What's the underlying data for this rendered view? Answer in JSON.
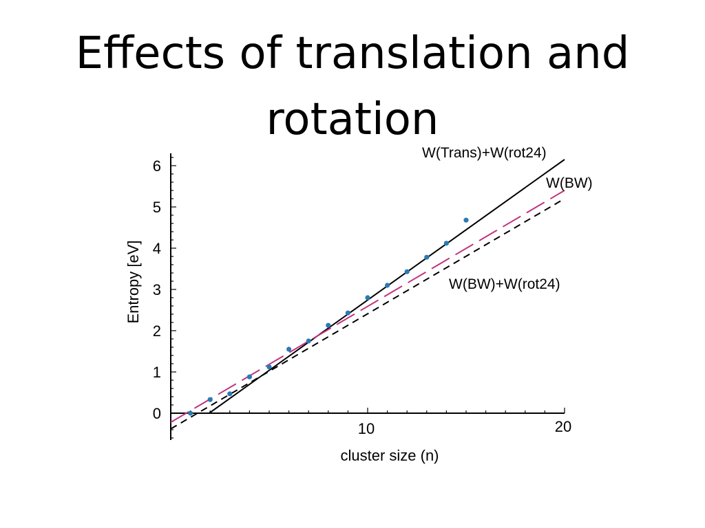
{
  "slide": {
    "title_line1": "Effects of translation and",
    "title_line2": "rotation"
  },
  "chart_data": {
    "type": "scatter",
    "xlabel": "cluster size (n)",
    "ylabel": "Entropy [eV]",
    "xlim": [
      0,
      20
    ],
    "ylim": [
      -0.6,
      6.3
    ],
    "x_tick_labels": [
      {
        "value": 10,
        "label": "10"
      },
      {
        "value": 20,
        "label": "20"
      }
    ],
    "y_tick_labels": [
      {
        "value": 0,
        "label": "0"
      },
      {
        "value": 1,
        "label": "1"
      },
      {
        "value": 2,
        "label": "2"
      },
      {
        "value": 3,
        "label": "3"
      },
      {
        "value": 4,
        "label": "4"
      },
      {
        "value": 5,
        "label": "5"
      },
      {
        "value": 6,
        "label": "6"
      }
    ],
    "grid": false,
    "colors": {
      "points": "#2a7ab5",
      "trans_rot": "#000000",
      "bw": "#c2327e",
      "bw_rot": "#000000"
    },
    "points": {
      "x": [
        1,
        2,
        3,
        4,
        5,
        6,
        7,
        8,
        9,
        10,
        11,
        12,
        13,
        14,
        15
      ],
      "y": [
        0.0,
        0.33,
        0.47,
        0.88,
        1.12,
        1.55,
        1.75,
        2.13,
        2.43,
        2.8,
        3.1,
        3.43,
        3.78,
        4.12,
        4.68
      ]
    },
    "lines": [
      {
        "id": "trans_rot",
        "name": "W(Trans)+W(rot24)",
        "style": "solid",
        "x": [
          1.95,
          20
        ],
        "y": [
          0.0,
          6.15
        ]
      },
      {
        "id": "bw",
        "name": "W(BW)",
        "style": "long-dash",
        "x": [
          0,
          20
        ],
        "y": [
          -0.22,
          5.4
        ]
      },
      {
        "id": "bw_rot",
        "name": "W(BW)+W(rot24)",
        "style": "dash",
        "x": [
          0,
          20
        ],
        "y": [
          -0.38,
          5.2
        ]
      }
    ],
    "annotations": [
      {
        "text": "W(Trans)+W(rot24)",
        "for": "trans_rot"
      },
      {
        "text": "W(BW)",
        "for": "bw"
      },
      {
        "text": "W(BW)+W(rot24)",
        "for": "bw_rot"
      }
    ]
  }
}
